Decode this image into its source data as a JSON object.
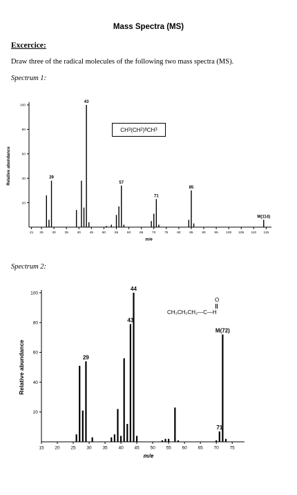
{
  "page_title": "Mass Spectra (MS)",
  "exercise_heading": "Excercice:",
  "instruction": "Draw three of the radical molecules of the following two mass spectra (MS).",
  "spectra": [
    {
      "label": "Spectrum 1:",
      "structure": {
        "p1": "CH",
        "s1": "3",
        "p2": "(CH",
        "s2": "2",
        "p3": ")",
        "s3": "8",
        "p4": "CH",
        "s4": "3"
      },
      "chart_data": {
        "type": "bar",
        "xlabel": "m/e",
        "ylabel": "Relative abundance",
        "xlim": [
          20,
          116
        ],
        "ylim": [
          0,
          100
        ],
        "x_ticks": [
          21,
          25,
          30,
          35,
          40,
          45,
          50,
          55,
          60,
          65,
          70,
          75,
          80,
          85,
          90,
          95,
          100,
          105,
          110,
          115
        ],
        "y_ticks": [
          20,
          40,
          60,
          80,
          100
        ],
        "peaks": [
          {
            "x": 27,
            "y": 26
          },
          {
            "x": 28,
            "y": 6
          },
          {
            "x": 29,
            "y": 38,
            "label": "29"
          },
          {
            "x": 39,
            "y": 14
          },
          {
            "x": 41,
            "y": 38
          },
          {
            "x": 42,
            "y": 16
          },
          {
            "x": 43,
            "y": 100,
            "label": "43"
          },
          {
            "x": 44,
            "y": 4
          },
          {
            "x": 51,
            "y": 1
          },
          {
            "x": 53,
            "y": 2
          },
          {
            "x": 55,
            "y": 10
          },
          {
            "x": 56,
            "y": 17
          },
          {
            "x": 57,
            "y": 34,
            "label": "57"
          },
          {
            "x": 58,
            "y": 2
          },
          {
            "x": 69,
            "y": 5
          },
          {
            "x": 70,
            "y": 11
          },
          {
            "x": 71,
            "y": 23,
            "label": "71"
          },
          {
            "x": 72,
            "y": 2
          },
          {
            "x": 84,
            "y": 6
          },
          {
            "x": 85,
            "y": 30,
            "label": "85"
          },
          {
            "x": 86,
            "y": 3
          },
          {
            "x": 114,
            "y": 6,
            "label": "M(114)"
          }
        ]
      }
    },
    {
      "label": "Spectrum 2:",
      "structure": {
        "text": "CH₃CH₂CH₂—C—H",
        "carbonyl_o": "O"
      },
      "chart_data": {
        "type": "bar",
        "xlabel": "m/e",
        "ylabel": "Relative abundance",
        "xlim": [
          15,
          78
        ],
        "ylim": [
          0,
          100
        ],
        "x_ticks": [
          15,
          20,
          25,
          30,
          35,
          40,
          45,
          50,
          55,
          60,
          65,
          70,
          75
        ],
        "y_ticks": [
          20,
          40,
          60,
          80,
          100
        ],
        "peaks": [
          {
            "x": 26,
            "y": 5
          },
          {
            "x": 27,
            "y": 51
          },
          {
            "x": 28,
            "y": 21
          },
          {
            "x": 29,
            "y": 54,
            "label": "29"
          },
          {
            "x": 31,
            "y": 3
          },
          {
            "x": 37,
            "y": 3
          },
          {
            "x": 38,
            "y": 5
          },
          {
            "x": 39,
            "y": 22
          },
          {
            "x": 40,
            "y": 4
          },
          {
            "x": 41,
            "y": 56
          },
          {
            "x": 42,
            "y": 12
          },
          {
            "x": 43,
            "y": 79,
            "label": "43"
          },
          {
            "x": 44,
            "y": 100,
            "label": "44"
          },
          {
            "x": 45,
            "y": 4
          },
          {
            "x": 53,
            "y": 1
          },
          {
            "x": 54,
            "y": 2
          },
          {
            "x": 55,
            "y": 2
          },
          {
            "x": 57,
            "y": 23
          },
          {
            "x": 58,
            "y": 1
          },
          {
            "x": 70,
            "y": 1
          },
          {
            "x": 71,
            "y": 7,
            "label": "71"
          },
          {
            "x": 72,
            "y": 72,
            "label": "M(72)"
          },
          {
            "x": 73,
            "y": 2
          }
        ]
      }
    }
  ]
}
